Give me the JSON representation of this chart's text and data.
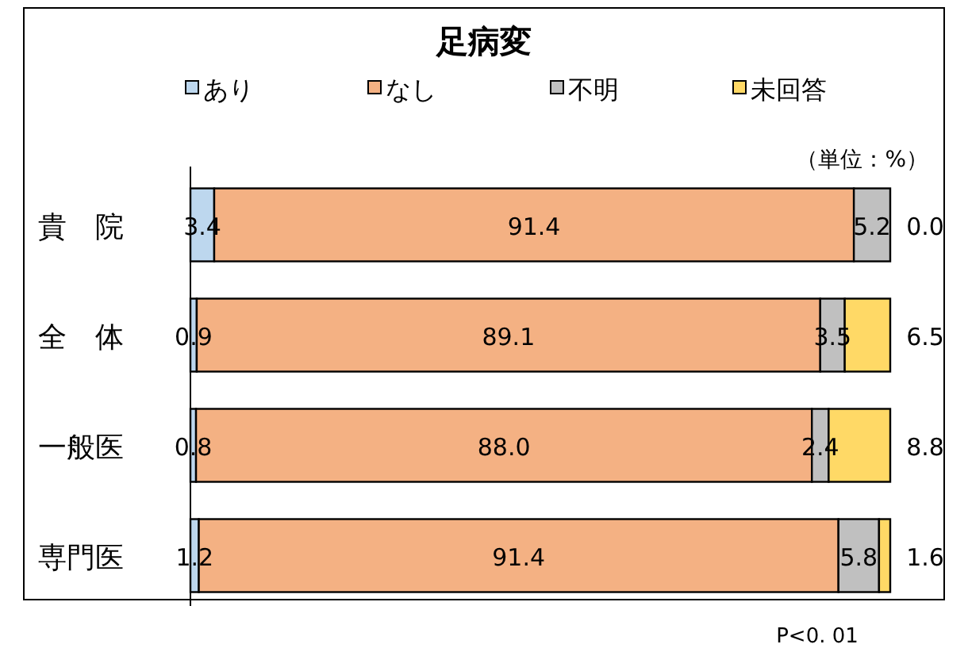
{
  "chart_data": {
    "type": "bar",
    "orientation": "horizontal",
    "stacked": true,
    "title": "足病変",
    "categories": [
      "貴　院",
      "全　体",
      "一般医",
      "専門医"
    ],
    "series": [
      {
        "name": "あり",
        "color": "#bdd7ee",
        "values": [
          3.4,
          0.9,
          0.8,
          1.2
        ],
        "value_labels": [
          "3.4",
          "0.9",
          "0.8",
          "1.2"
        ]
      },
      {
        "name": "なし",
        "color": "#f4b183",
        "values": [
          91.4,
          89.1,
          88.0,
          91.4
        ],
        "value_labels": [
          "91.4",
          "89.1",
          "88.0",
          "91.4"
        ]
      },
      {
        "name": "不明",
        "color": "#c0c0c0",
        "values": [
          5.2,
          3.5,
          2.4,
          5.8
        ],
        "value_labels": [
          "5.2",
          "3.5",
          "2.4",
          "5.8"
        ]
      },
      {
        "name": "未回答",
        "color": "#ffd966",
        "values": [
          0.0,
          6.5,
          8.8,
          1.6
        ],
        "value_labels": [
          "0.0",
          "6.5",
          "8.8",
          "1.6"
        ]
      }
    ],
    "legend": "top",
    "xlim": [
      0,
      100
    ],
    "tick_labels": "y",
    "annotations": [
      "（単位：%）",
      "P<0. 01"
    ]
  }
}
